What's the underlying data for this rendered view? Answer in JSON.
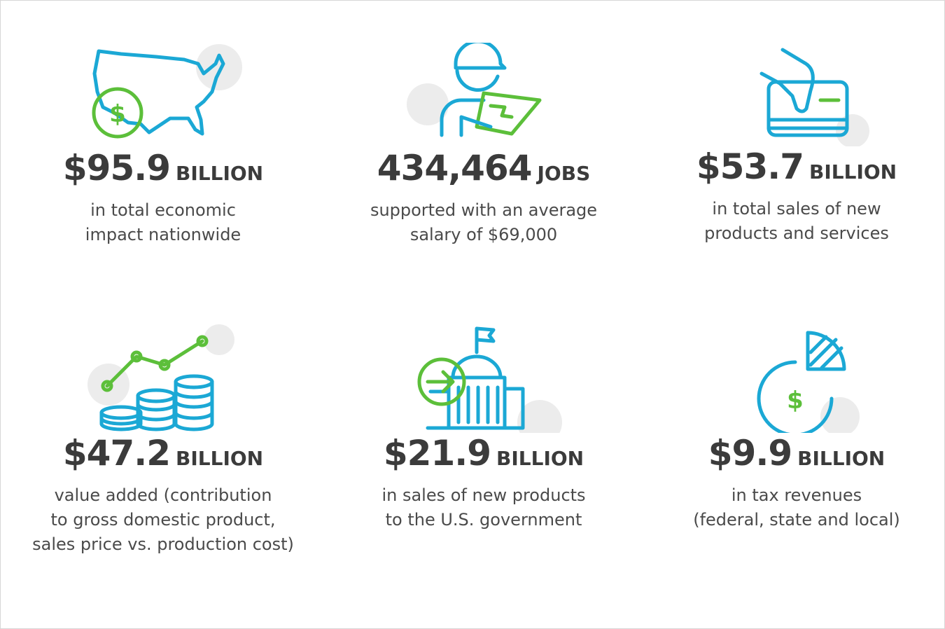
{
  "stats": [
    {
      "figure": "$95.9",
      "unit": "BILLION",
      "description": [
        "in total economic",
        "impact nationwide"
      ]
    },
    {
      "figure": "434,464",
      "unit": "JOBS",
      "description": [
        "supported with an average",
        "salary of $69,000"
      ]
    },
    {
      "figure": "$53.7",
      "unit": "BILLION",
      "description": [
        "in total sales of new",
        "products and services"
      ]
    },
    {
      "figure": "$47.2",
      "unit": "BILLION",
      "description": [
        "value added (contribution",
        "to gross domestic product,",
        "sales price vs. production cost)"
      ]
    },
    {
      "figure": "$21.9",
      "unit": "BILLION",
      "description": [
        "in sales of new products",
        "to the U.S. government"
      ]
    },
    {
      "figure": "$9.9",
      "unit": "BILLION",
      "description": [
        "in tax revenues",
        "(federal, state and local)"
      ]
    }
  ]
}
